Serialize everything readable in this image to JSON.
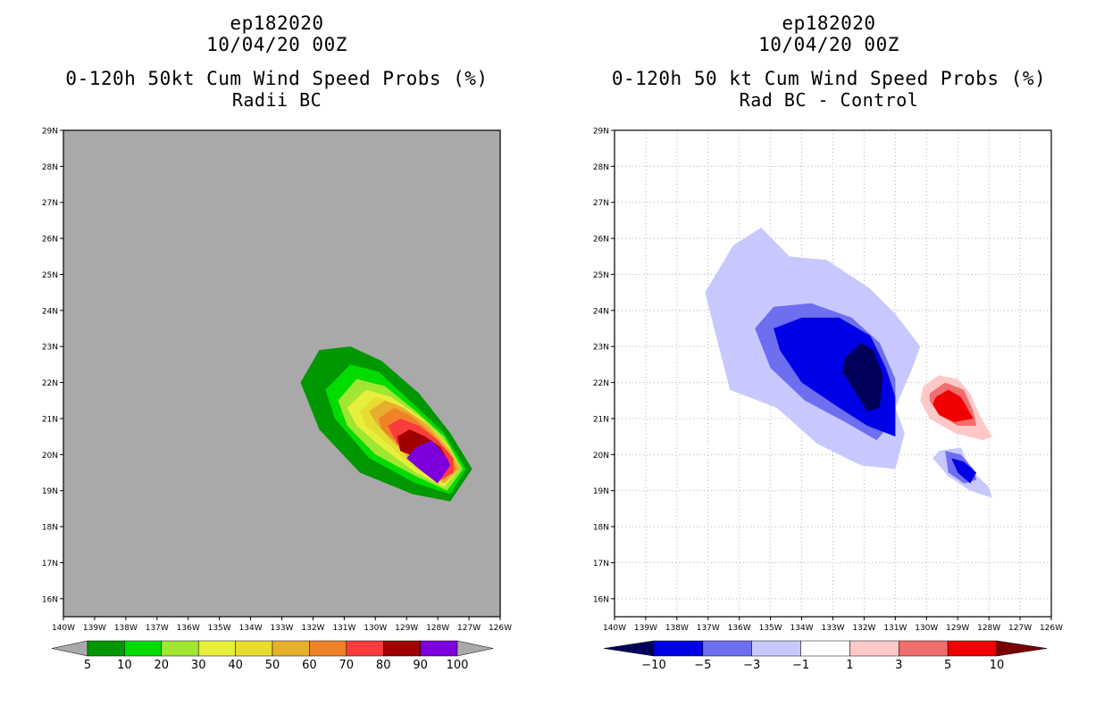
{
  "chart_data": [
    {
      "type": "contour_map",
      "title_line1": "ep182020",
      "title_line2": "10/04/20 00Z",
      "title_line3": "0-120h 50kt Cum Wind Speed Probs (%)",
      "title_line4": "Radii BC",
      "xlim": [
        -140,
        -126
      ],
      "ylim": [
        15.5,
        29
      ],
      "x_ticks": [
        "140W",
        "139W",
        "138W",
        "137W",
        "136W",
        "135W",
        "134W",
        "133W",
        "132W",
        "131W",
        "130W",
        "129W",
        "128W",
        "127W",
        "126W"
      ],
      "y_ticks": [
        "16N",
        "17N",
        "18N",
        "19N",
        "20N",
        "21N",
        "22N",
        "23N",
        "24N",
        "25N",
        "26N",
        "27N",
        "28N",
        "29N"
      ],
      "grid": false,
      "background": "#a9a9a9",
      "colorbar": {
        "levels": [
          "5",
          "10",
          "20",
          "30",
          "40",
          "50",
          "60",
          "70",
          "80",
          "90",
          "100"
        ],
        "colors": [
          "#009700",
          "#00dc00",
          "#a0e632",
          "#e6f03c",
          "#e6dc32",
          "#e6af2d",
          "#f08228",
          "#fa3c3c",
          "#a00000",
          "#7d00dc"
        ]
      },
      "contours": [
        {
          "level": 5,
          "color": "#009700",
          "points": [
            [
              -132.4,
              22
            ],
            [
              -131.8,
              22.9
            ],
            [
              -130.8,
              23.0
            ],
            [
              -129.8,
              22.6
            ],
            [
              -128.6,
              21.7
            ],
            [
              -127.6,
              20.6
            ],
            [
              -126.9,
              19.6
            ],
            [
              -127.6,
              18.7
            ],
            [
              -128.8,
              18.9
            ],
            [
              -130.5,
              19.5
            ],
            [
              -131.8,
              20.7
            ]
          ]
        },
        {
          "level": 10,
          "color": "#00dc00",
          "points": [
            [
              -131.6,
              21.8
            ],
            [
              -130.8,
              22.5
            ],
            [
              -129.9,
              22.3
            ],
            [
              -128.9,
              21.5
            ],
            [
              -127.8,
              20.6
            ],
            [
              -127.1,
              19.6
            ],
            [
              -127.6,
              18.9
            ],
            [
              -128.7,
              19.2
            ],
            [
              -130.2,
              19.9
            ],
            [
              -131.3,
              21.0
            ]
          ]
        },
        {
          "level": 20,
          "color": "#a0e632",
          "points": [
            [
              -131.2,
              21.5
            ],
            [
              -130.6,
              22.1
            ],
            [
              -129.7,
              21.9
            ],
            [
              -128.7,
              21.2
            ],
            [
              -127.8,
              20.5
            ],
            [
              -127.2,
              19.6
            ],
            [
              -127.7,
              19.0
            ],
            [
              -128.7,
              19.4
            ],
            [
              -130.0,
              20.0
            ],
            [
              -130.9,
              20.8
            ]
          ]
        },
        {
          "level": 30,
          "color": "#e6f03c",
          "points": [
            [
              -130.9,
              21.3
            ],
            [
              -130.3,
              21.8
            ],
            [
              -129.5,
              21.6
            ],
            [
              -128.5,
              21.0
            ],
            [
              -127.7,
              20.3
            ],
            [
              -127.3,
              19.6
            ],
            [
              -127.8,
              19.1
            ],
            [
              -128.7,
              19.5
            ],
            [
              -129.8,
              20.2
            ],
            [
              -130.6,
              20.8
            ]
          ]
        },
        {
          "level": 40,
          "color": "#e6dc32",
          "points": [
            [
              -130.5,
              21.2
            ],
            [
              -130.0,
              21.6
            ],
            [
              -129.3,
              21.4
            ],
            [
              -128.4,
              20.9
            ],
            [
              -127.6,
              20.2
            ],
            [
              -127.3,
              19.6
            ],
            [
              -127.8,
              19.2
            ],
            [
              -128.7,
              19.6
            ],
            [
              -129.6,
              20.3
            ],
            [
              -130.3,
              20.8
            ]
          ]
        },
        {
          "level": 50,
          "color": "#e6af2d",
          "points": [
            [
              -130.2,
              21.2
            ],
            [
              -129.7,
              21.5
            ],
            [
              -129.1,
              21.3
            ],
            [
              -128.3,
              20.8
            ],
            [
              -127.6,
              20.1
            ],
            [
              -127.3,
              19.6
            ],
            [
              -127.8,
              19.2
            ],
            [
              -128.7,
              19.7
            ],
            [
              -129.5,
              20.4
            ],
            [
              -130.0,
              20.9
            ]
          ]
        },
        {
          "level": 60,
          "color": "#f08228",
          "points": [
            [
              -129.9,
              21.0
            ],
            [
              -129.4,
              21.3
            ],
            [
              -128.9,
              21.1
            ],
            [
              -128.2,
              20.6
            ],
            [
              -127.6,
              20.0
            ],
            [
              -127.4,
              19.6
            ],
            [
              -127.8,
              19.3
            ],
            [
              -128.6,
              19.8
            ],
            [
              -129.4,
              20.4
            ],
            [
              -129.8,
              20.7
            ]
          ]
        },
        {
          "level": 70,
          "color": "#fa3c3c",
          "points": [
            [
              -129.6,
              20.8
            ],
            [
              -129.2,
              21.0
            ],
            [
              -128.6,
              20.8
            ],
            [
              -128.0,
              20.4
            ],
            [
              -127.5,
              19.9
            ],
            [
              -127.5,
              19.5
            ],
            [
              -127.9,
              19.3
            ],
            [
              -128.6,
              19.8
            ],
            [
              -129.3,
              20.3
            ]
          ]
        },
        {
          "level": 80,
          "color": "#a00000",
          "points": [
            [
              -129.3,
              20.5
            ],
            [
              -128.9,
              20.7
            ],
            [
              -128.4,
              20.5
            ],
            [
              -127.9,
              20.2
            ],
            [
              -127.6,
              19.7
            ],
            [
              -127.9,
              19.4
            ],
            [
              -128.6,
              19.9
            ],
            [
              -129.2,
              20.1
            ]
          ]
        },
        {
          "level": 90,
          "color": "#7d00dc",
          "points": [
            [
              -128.7,
              20.2
            ],
            [
              -128.2,
              20.4
            ],
            [
              -127.7,
              19.9
            ],
            [
              -127.6,
              19.7
            ],
            [
              -128.0,
              19.2
            ],
            [
              -128.6,
              19.6
            ],
            [
              -129.0,
              19.9
            ]
          ]
        }
      ]
    },
    {
      "type": "contour_map",
      "title_line1": "ep182020",
      "title_line2": "10/04/20 00Z",
      "title_line3": "0-120h 50 kt Cum Wind Speed Probs (%)",
      "title_line4": "Rad BC - Control",
      "xlim": [
        -140,
        -126
      ],
      "ylim": [
        15.5,
        29
      ],
      "x_ticks": [
        "140W",
        "139W",
        "138W",
        "137W",
        "136W",
        "135W",
        "134W",
        "133W",
        "132W",
        "131W",
        "130W",
        "129W",
        "128W",
        "127W",
        "126W"
      ],
      "y_ticks": [
        "16N",
        "17N",
        "18N",
        "19N",
        "20N",
        "21N",
        "22N",
        "23N",
        "24N",
        "25N",
        "26N",
        "27N",
        "28N",
        "29N"
      ],
      "grid": true,
      "background": "#ffffff",
      "colorbar": {
        "levels": [
          "-10",
          "-5",
          "-3",
          "-1",
          "1",
          "3",
          "5",
          "10"
        ],
        "colors": [
          "#00005a",
          "#0000e6",
          "#6e6ef0",
          "#c8c8ff",
          "#ffffff",
          "#ffc8c8",
          "#f06e6e",
          "#f00000",
          "#780000"
        ]
      },
      "contours": [
        {
          "level": -1,
          "color": "#c8c8ff",
          "points": [
            [
              -137.1,
              24.5
            ],
            [
              -136.2,
              25.8
            ],
            [
              -135.3,
              26.3
            ],
            [
              -134.4,
              25.5
            ],
            [
              -133.2,
              25.4
            ],
            [
              -131.8,
              24.6
            ],
            [
              -131.0,
              23.9
            ],
            [
              -130.2,
              23.0
            ],
            [
              -130.5,
              22.3
            ],
            [
              -131.0,
              21.3
            ],
            [
              -130.7,
              20.6
            ],
            [
              -131.0,
              19.6
            ],
            [
              -132.1,
              19.7
            ],
            [
              -133.5,
              20.3
            ],
            [
              -134.8,
              21.3
            ],
            [
              -136.3,
              21.8
            ]
          ]
        },
        {
          "level": -1,
          "color": "#c8c8ff",
          "points": [
            [
              -129.6,
              20.1
            ],
            [
              -128.9,
              20.2
            ],
            [
              -128.6,
              19.6
            ],
            [
              -128.0,
              19.1
            ],
            [
              -127.9,
              18.8
            ],
            [
              -128.6,
              19.0
            ],
            [
              -129.3,
              19.4
            ],
            [
              -129.8,
              19.9
            ]
          ]
        },
        {
          "level": -3,
          "color": "#6e6ef0",
          "points": [
            [
              -135.5,
              23.5
            ],
            [
              -134.9,
              24.1
            ],
            [
              -133.7,
              24.2
            ],
            [
              -132.4,
              23.8
            ],
            [
              -131.5,
              23.1
            ],
            [
              -131.0,
              22.1
            ],
            [
              -131.0,
              21.0
            ],
            [
              -131.6,
              20.4
            ],
            [
              -132.6,
              20.9
            ],
            [
              -133.9,
              21.5
            ],
            [
              -135.0,
              22.4
            ]
          ]
        },
        {
          "level": -3,
          "color": "#6e6ef0",
          "points": [
            [
              -129.4,
              20.1
            ],
            [
              -128.9,
              20.0
            ],
            [
              -128.5,
              19.6
            ],
            [
              -128.4,
              19.3
            ],
            [
              -128.8,
              19.2
            ],
            [
              -129.3,
              19.5
            ]
          ]
        },
        {
          "level": -5,
          "color": "#0000e6",
          "points": [
            [
              -134.9,
              23.5
            ],
            [
              -134.0,
              23.8
            ],
            [
              -132.8,
              23.8
            ],
            [
              -131.8,
              23.3
            ],
            [
              -131.3,
              22.4
            ],
            [
              -131.0,
              21.6
            ],
            [
              -131.0,
              20.5
            ],
            [
              -131.9,
              20.8
            ],
            [
              -132.8,
              21.3
            ],
            [
              -134.0,
              22.0
            ],
            [
              -134.7,
              22.9
            ]
          ]
        },
        {
          "level": -5,
          "color": "#0000e6",
          "points": [
            [
              -129.2,
              19.9
            ],
            [
              -128.8,
              19.8
            ],
            [
              -128.4,
              19.5
            ],
            [
              -128.6,
              19.2
            ],
            [
              -129.0,
              19.5
            ]
          ]
        },
        {
          "level": -10,
          "color": "#00005a",
          "points": [
            [
              -132.6,
              22.7
            ],
            [
              -132.1,
              23.1
            ],
            [
              -131.7,
              22.9
            ],
            [
              -131.4,
              22.2
            ],
            [
              -131.5,
              21.3
            ],
            [
              -131.9,
              21.2
            ],
            [
              -132.4,
              21.9
            ],
            [
              -132.7,
              22.3
            ]
          ]
        },
        {
          "level": 1,
          "color": "#ffc8c8",
          "points": [
            [
              -130.1,
              21.9
            ],
            [
              -129.6,
              22.2
            ],
            [
              -129.0,
              22.1
            ],
            [
              -128.6,
              21.7
            ],
            [
              -128.3,
              21.1
            ],
            [
              -127.9,
              20.5
            ],
            [
              -128.2,
              20.4
            ],
            [
              -129.1,
              20.6
            ],
            [
              -129.9,
              21.0
            ],
            [
              -130.2,
              21.5
            ]
          ]
        },
        {
          "level": 3,
          "color": "#f06e6e",
          "points": [
            [
              -129.9,
              21.7
            ],
            [
              -129.4,
              22.0
            ],
            [
              -128.8,
              21.8
            ],
            [
              -128.5,
              21.2
            ],
            [
              -128.4,
              20.8
            ],
            [
              -129.0,
              20.8
            ],
            [
              -129.6,
              21.1
            ],
            [
              -129.9,
              21.5
            ]
          ]
        },
        {
          "level": 5,
          "color": "#f00000",
          "points": [
            [
              -129.7,
              21.6
            ],
            [
              -129.3,
              21.8
            ],
            [
              -128.9,
              21.6
            ],
            [
              -128.5,
              21.0
            ],
            [
              -129.1,
              20.9
            ],
            [
              -129.6,
              21.1
            ],
            [
              -129.8,
              21.4
            ]
          ]
        }
      ]
    }
  ]
}
